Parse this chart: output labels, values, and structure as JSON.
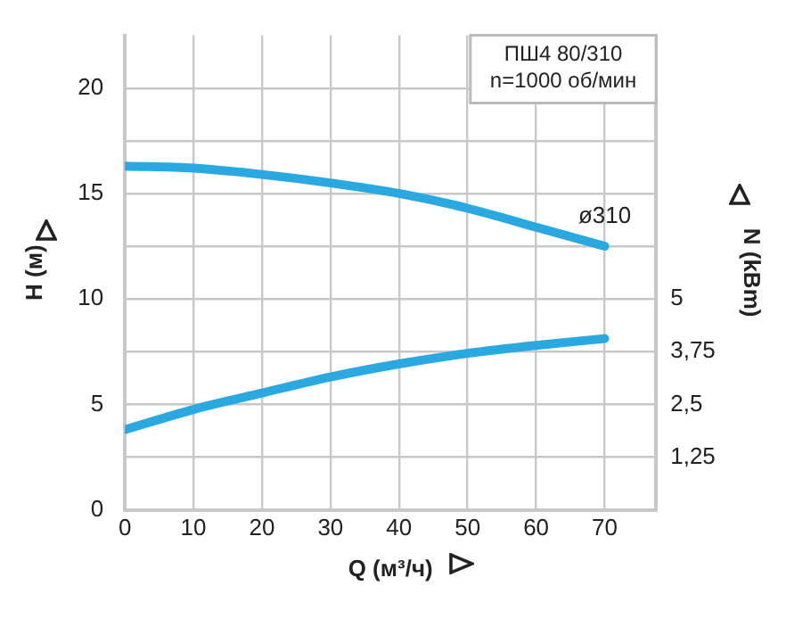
{
  "chart_data": {
    "type": "line",
    "xlabel": "Q (м³/ч)",
    "ylabel": "H (м)",
    "y2label": "N (kBm)",
    "x": [
      0,
      10,
      20,
      30,
      40,
      50,
      60,
      70
    ],
    "series": [
      {
        "color": "#29a9e0",
        "values": [
          16.3,
          16.2,
          15.9,
          15.5,
          15.0,
          14.3,
          13.4,
          12.5
        ]
      },
      {
        "color": "#29a9e0",
        "axis": "y2",
        "values": [
          1.9,
          2.38,
          2.77,
          3.15,
          3.46,
          3.71,
          3.9,
          4.06
        ]
      }
    ],
    "xlim": [
      0,
      77.5
    ],
    "xticks": [
      0,
      10,
      20,
      30,
      40,
      50,
      60,
      70
    ],
    "ylim": [
      0,
      22.5
    ],
    "yticks": [
      0,
      {
        "value": 2.5,
        "label": null
      },
      5,
      {
        "value": 7.5,
        "label": null
      },
      10,
      {
        "value": 12.5,
        "label": null
      },
      15,
      {
        "value": 17.5,
        "label": null
      },
      20
    ],
    "y2lim": [
      0,
      11.25
    ],
    "y2ticks": [
      {
        "value": 1.25,
        "label": "1,25"
      },
      {
        "value": 2.5,
        "label": "2,5"
      },
      {
        "value": 3.75,
        "label": "3,75"
      },
      5
    ],
    "annotations": [
      "ПШ4 80/310",
      "n=1000 об/мин",
      {
        "text": "ø310",
        "x": 70,
        "y": 12.5
      }
    ],
    "grid": true,
    "marker": "none",
    "line_style": "solid"
  }
}
